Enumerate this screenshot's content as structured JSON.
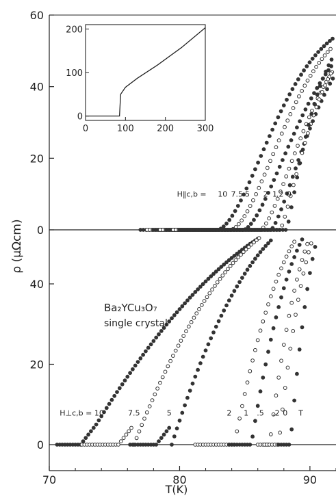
{
  "chart_data": [
    {
      "panel": "upper",
      "type": "scatter",
      "x_range": [
        70,
        92
      ],
      "y_range": [
        -2,
        60
      ],
      "y_ticks": [
        0,
        20,
        40,
        60
      ],
      "x_ticks": [
        70,
        80,
        90
      ],
      "annotation_prefix": "H‖c,b =",
      "series": [
        {
          "name": "10",
          "marker": "filled",
          "Tc": 82.9,
          "w": 2.8,
          "exp": 1.7
        },
        {
          "name": "7.5",
          "marker": "open",
          "Tc": 83.9,
          "w": 2.7,
          "exp": 1.7
        },
        {
          "name": "5",
          "marker": "filled",
          "Tc": 84.9,
          "w": 2.6,
          "exp": 1.6
        },
        {
          "name": "2",
          "marker": "open",
          "Tc": 86.2,
          "w": 2.1,
          "exp": 1.5
        },
        {
          "name": "1",
          "marker": "filled",
          "Tc": 87.0,
          "w": 1.8,
          "exp": 1.4
        },
        {
          "name": ".2",
          "marker": "open",
          "Tc": 87.7,
          "w": 1.3,
          "exp": 1.3
        },
        {
          "name": "0",
          "marker": "filled",
          "Tc": 88.2,
          "w": 0.9,
          "exp": 1.2
        }
      ],
      "series_label_x": [
        83.3,
        84.4,
        85.2,
        86.6,
        87.3,
        87.7,
        88.4
      ],
      "series_label_y": 10,
      "prefix_label_x": 79.8,
      "inset": {
        "x_range": [
          0,
          300
        ],
        "y_range": [
          -10,
          210
        ],
        "x_ticks": [
          0,
          100,
          200,
          300
        ],
        "y_ticks": [
          0,
          100,
          200
        ],
        "line": [
          [
            0,
            0
          ],
          [
            85,
            0
          ],
          [
            88,
            50
          ],
          [
            100,
            66
          ],
          [
            130,
            87
          ],
          [
            180,
            117
          ],
          [
            240,
            157
          ],
          [
            300,
            203
          ]
        ]
      }
    },
    {
      "panel": "lower",
      "type": "scatter",
      "x_range": [
        70,
        92
      ],
      "y_range": [
        -2,
        60
      ],
      "y_ticks": [
        0,
        20,
        40
      ],
      "x_ticks": [
        70,
        80,
        90
      ],
      "x_label": "T(K)",
      "y_label": "ρ (μΩcm)",
      "annotation_prefix": "H⊥c,b = 10",
      "text_line1": "Ba₂YCu₃O₇",
      "text_line2": "single crystal",
      "unit_label": "T",
      "series": [
        {
          "name": "10",
          "marker": "filled",
          "onset": 73.6,
          "start": 70.6,
          "mid": 74.4,
          "y_at_mid": 10
        },
        {
          "name": "7.5",
          "marker": "open",
          "onset": 76.5,
          "start": 72.5,
          "mid": 77.2,
          "y_at_mid": 10
        },
        {
          "name": "5",
          "marker": "filled",
          "onset": 79.4,
          "start": 76.2,
          "mid": 80.2,
          "y_at_mid": 10
        },
        {
          "name": "2",
          "marker": "open",
          "onset": 84.2,
          "start": 81.2,
          "mid": 84.8,
          "y_at_mid": 10
        },
        {
          "name": "1",
          "marker": "filled",
          "onset": 85.5,
          "start": 83.8,
          "mid": 86.0,
          "y_at_mid": 10
        },
        {
          "name": ".5",
          "marker": "open",
          "onset": 86.9,
          "start": 86.0,
          "mid": 87.2,
          "y_at_mid": 10
        },
        {
          "name": ".2",
          "marker": "open",
          "onset": 87.6,
          "start": 86.5,
          "mid": 87.8,
          "y_at_mid": 10
        },
        {
          "name": "0",
          "marker": "filled",
          "onset": 88.5,
          "start": 87.6,
          "mid": 88.6,
          "y_at_mid": 10
        }
      ],
      "series_label_x": [
        76.5,
        79.2,
        83.8,
        85.1,
        86.2,
        87.4,
        88.1,
        89.3
      ],
      "series_label_values": [
        "7.5",
        "5",
        "2",
        "1",
        ".5",
        ".2",
        "0",
        "T"
      ],
      "series_label_y": 10,
      "prefix_label_x": 70.8
    }
  ]
}
